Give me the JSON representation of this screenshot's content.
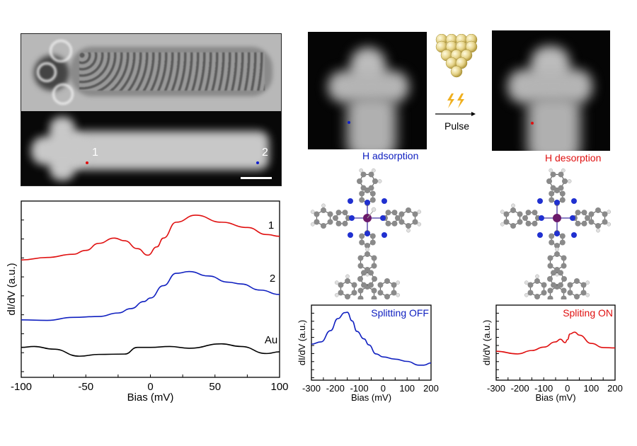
{
  "figure": {
    "panel_top_left": {
      "point_labels": [
        "1",
        "2"
      ],
      "point_colors": [
        "#e01010",
        "#1020d0"
      ],
      "has_scale_bar": true
    },
    "stm_left_caption": "H adsorption",
    "stm_right_caption": "H desorption",
    "pulse_label": "Pulse",
    "icons": [
      "stm-tip-icon",
      "lightning-icon",
      "arrow-right-icon"
    ],
    "colors": {
      "red": "#e01010",
      "blue": "#1020c0",
      "black": "#000000",
      "tip_gold": "#e6d48a",
      "lightning": "#f0b020"
    }
  },
  "chart_data": [
    {
      "type": "line",
      "xlabel": "Bias (mV)",
      "ylabel": "dI/dV (a.u.)",
      "xlim": [
        -100,
        100
      ],
      "xticks": [
        -100,
        -50,
        0,
        50,
        100
      ],
      "ylim": [
        0,
        10
      ],
      "grid": false,
      "series": [
        {
          "name": "1",
          "color": "#e01010",
          "x": [
            -100,
            -80,
            -60,
            -50,
            -40,
            -28,
            -20,
            -10,
            -2,
            5,
            10,
            20,
            35,
            55,
            75,
            90,
            100
          ],
          "y": [
            6.66,
            6.8,
            6.98,
            7.2,
            7.6,
            7.9,
            7.75,
            7.3,
            6.93,
            7.4,
            7.9,
            8.8,
            9.2,
            8.8,
            8.5,
            8.1,
            8.0
          ]
        },
        {
          "name": "2",
          "color": "#1020c0",
          "x": [
            -100,
            -80,
            -60,
            -40,
            -25,
            -15,
            -5,
            0,
            10,
            20,
            30,
            45,
            60,
            70,
            85,
            100
          ],
          "y": [
            3.26,
            3.23,
            3.4,
            3.45,
            3.65,
            3.9,
            4.3,
            4.5,
            5.2,
            5.9,
            6.0,
            5.75,
            5.4,
            5.3,
            4.95,
            4.7
          ]
        },
        {
          "name": "Au",
          "color": "#000000",
          "x": [
            -100,
            -90,
            -75,
            -55,
            -40,
            -20,
            -10,
            0,
            15,
            30,
            55,
            70,
            90,
            100
          ],
          "y": [
            1.7,
            1.75,
            1.6,
            1.2,
            1.3,
            1.32,
            1.7,
            1.7,
            1.75,
            1.65,
            1.9,
            1.75,
            1.35,
            1.45
          ]
        }
      ]
    },
    {
      "type": "line",
      "title": "Splitting OFF",
      "xlabel": "Bias (mV)",
      "ylabel": "dI/dV (a.u.)",
      "xlim": [
        -300,
        200
      ],
      "xticks": [
        -300,
        -200,
        -100,
        0,
        100,
        200
      ],
      "ylim": [
        0,
        10
      ],
      "grid": false,
      "series": [
        {
          "color": "#1020c0",
          "x": [
            -300,
            -260,
            -220,
            -190,
            -160,
            -150,
            -130,
            -110,
            -80,
            -60,
            -30,
            0,
            50,
            100,
            150,
            170,
            200
          ],
          "y": [
            4.8,
            5.1,
            6.6,
            8.2,
            9.0,
            9.05,
            7.9,
            6.5,
            5.5,
            4.7,
            3.5,
            3.1,
            2.8,
            2.5,
            2.0,
            2.0,
            2.3
          ]
        }
      ]
    },
    {
      "type": "line",
      "title": "Spliting ON",
      "xlabel": "Bias (mV)",
      "ylabel": "dI/dV (a.u.)",
      "xlim": [
        -300,
        200
      ],
      "xticks": [
        -300,
        -200,
        -100,
        0,
        100,
        200
      ],
      "ylim": [
        0,
        10
      ],
      "grid": false,
      "series": [
        {
          "color": "#e01010",
          "x": [
            -300,
            -210,
            -150,
            -100,
            -50,
            -30,
            -10,
            0,
            10,
            30,
            50,
            100,
            150,
            200
          ],
          "y": [
            3.85,
            3.5,
            3.95,
            4.4,
            5.1,
            5.45,
            5.0,
            5.4,
            6.15,
            6.4,
            6.0,
            4.9,
            4.35,
            4.3
          ]
        }
      ]
    }
  ]
}
